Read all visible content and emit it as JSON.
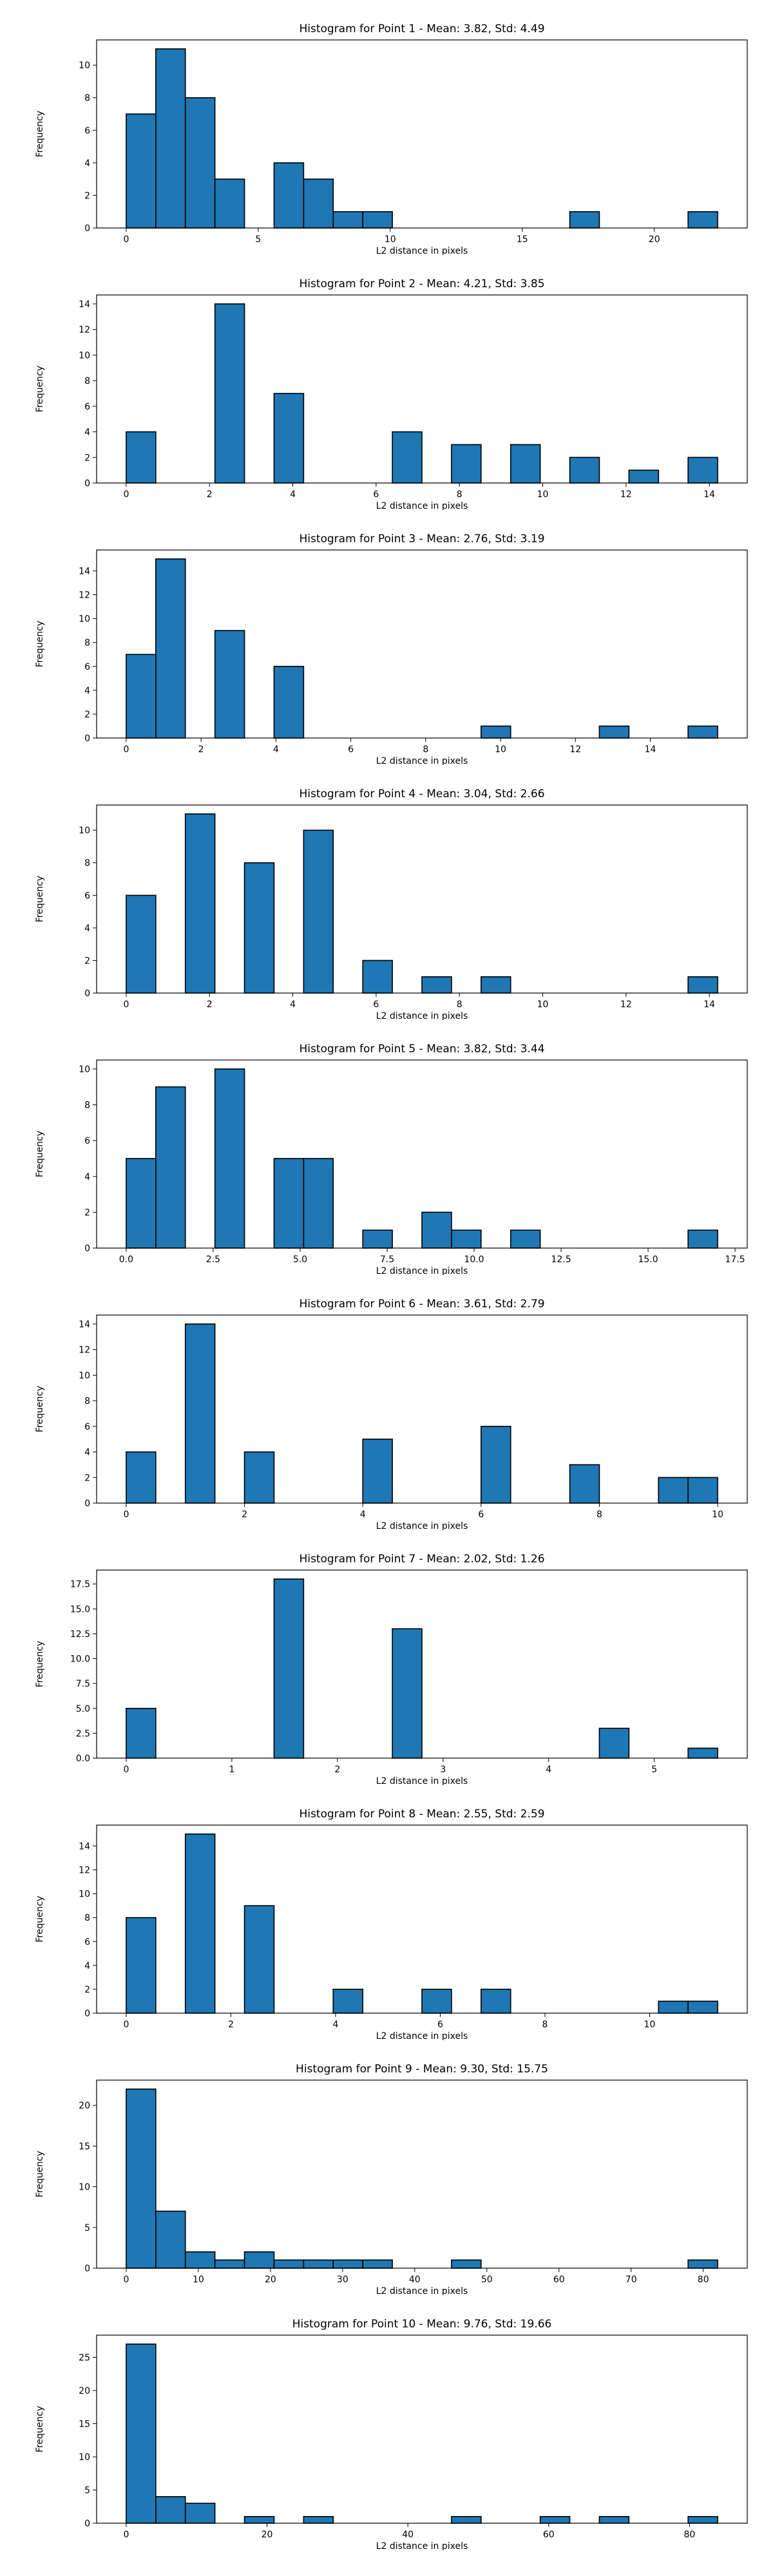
{
  "chart_data": [
    {
      "type": "bar",
      "title": "Histogram for Point 1 - Mean: 3.82, Std: 4.49",
      "xlabel": "L2 distance in pixels",
      "ylabel": "Frequency",
      "bar_color": "#1f77b4",
      "edge_color": "#000000",
      "bin_start": 0.0,
      "bin_width": 1.12,
      "counts": [
        7,
        11,
        8,
        3,
        0,
        4,
        3,
        1,
        1,
        0,
        0,
        0,
        0,
        0,
        0,
        1,
        0,
        0,
        0,
        1
      ],
      "xlim": [
        -1.12,
        23.52
      ],
      "ylim": [
        0,
        11.55
      ],
      "xticks": [
        0,
        5,
        10,
        15,
        20
      ],
      "xtick_labels": [
        "0",
        "5",
        "10",
        "15",
        "20"
      ],
      "yticks": [
        0,
        2,
        4,
        6,
        8,
        10
      ],
      "ytick_labels": [
        "0",
        "2",
        "4",
        "6",
        "8",
        "10"
      ]
    },
    {
      "type": "bar",
      "title": "Histogram for Point 2 - Mean: 4.21, Std: 3.85",
      "xlabel": "L2 distance in pixels",
      "ylabel": "Frequency",
      "bar_color": "#1f77b4",
      "edge_color": "#000000",
      "bin_start": 0.0,
      "bin_width": 0.71,
      "counts": [
        4,
        0,
        0,
        14,
        0,
        7,
        0,
        0,
        0,
        4,
        0,
        3,
        0,
        3,
        0,
        2,
        0,
        1,
        0,
        2
      ],
      "xlim": [
        -0.71,
        14.91
      ],
      "ylim": [
        0,
        14.7
      ],
      "xticks": [
        0,
        2,
        4,
        6,
        8,
        10,
        12,
        14
      ],
      "xtick_labels": [
        "0",
        "2",
        "4",
        "6",
        "8",
        "10",
        "12",
        "14"
      ],
      "yticks": [
        0,
        2,
        4,
        6,
        8,
        10,
        12,
        14
      ],
      "ytick_labels": [
        "0",
        "2",
        "4",
        "6",
        "8",
        "10",
        "12",
        "14"
      ]
    },
    {
      "type": "bar",
      "title": "Histogram for Point 3 - Mean: 2.76, Std: 3.19",
      "xlabel": "L2 distance in pixels",
      "ylabel": "Frequency",
      "bar_color": "#1f77b4",
      "edge_color": "#000000",
      "bin_start": 0.0,
      "bin_width": 0.79,
      "counts": [
        7,
        15,
        0,
        9,
        0,
        6,
        0,
        0,
        0,
        0,
        0,
        0,
        1,
        0,
        0,
        0,
        1,
        0,
        0,
        1
      ],
      "xlim": [
        -0.79,
        16.59
      ],
      "ylim": [
        0,
        15.75
      ],
      "xticks": [
        0,
        2,
        4,
        6,
        8,
        10,
        12,
        14
      ],
      "xtick_labels": [
        "0",
        "2",
        "4",
        "6",
        "8",
        "10",
        "12",
        "14"
      ],
      "yticks": [
        0,
        2,
        4,
        6,
        8,
        10,
        12,
        14
      ],
      "ytick_labels": [
        "0",
        "2",
        "4",
        "6",
        "8",
        "10",
        "12",
        "14"
      ]
    },
    {
      "type": "bar",
      "title": "Histogram for Point 4 - Mean: 3.04, Std: 2.66",
      "xlabel": "L2 distance in pixels",
      "ylabel": "Frequency",
      "bar_color": "#1f77b4",
      "edge_color": "#000000",
      "bin_start": 0.0,
      "bin_width": 0.71,
      "counts": [
        6,
        0,
        11,
        0,
        8,
        0,
        10,
        0,
        2,
        0,
        1,
        0,
        1,
        0,
        0,
        0,
        0,
        0,
        0,
        1
      ],
      "xlim": [
        -0.71,
        14.91
      ],
      "ylim": [
        0,
        11.55
      ],
      "xticks": [
        0,
        2,
        4,
        6,
        8,
        10,
        12,
        14
      ],
      "xtick_labels": [
        "0",
        "2",
        "4",
        "6",
        "8",
        "10",
        "12",
        "14"
      ],
      "yticks": [
        0,
        2,
        4,
        6,
        8,
        10
      ],
      "ytick_labels": [
        "0",
        "2",
        "4",
        "6",
        "8",
        "10"
      ]
    },
    {
      "type": "bar",
      "title": "Histogram for Point 5 - Mean: 3.82, Std: 3.44",
      "xlabel": "L2 distance in pixels",
      "ylabel": "Frequency",
      "bar_color": "#1f77b4",
      "edge_color": "#000000",
      "bin_start": 0.0,
      "bin_width": 0.85,
      "counts": [
        5,
        9,
        0,
        10,
        0,
        5,
        5,
        0,
        1,
        0,
        2,
        1,
        0,
        1,
        0,
        0,
        0,
        0,
        0,
        1
      ],
      "xlim": [
        -0.85,
        17.85
      ],
      "ylim": [
        0,
        10.5
      ],
      "xticks": [
        0,
        2.5,
        5,
        7.5,
        10,
        12.5,
        15,
        17.5
      ],
      "xtick_labels": [
        "0.0",
        "2.5",
        "5.0",
        "7.5",
        "10.0",
        "12.5",
        "15.0",
        "17.5"
      ],
      "yticks": [
        0,
        2,
        4,
        6,
        8,
        10
      ],
      "ytick_labels": [
        "0",
        "2",
        "4",
        "6",
        "8",
        "10"
      ]
    },
    {
      "type": "bar",
      "title": "Histogram for Point 6 - Mean: 3.61, Std: 2.79",
      "xlabel": "L2 distance in pixels",
      "ylabel": "Frequency",
      "bar_color": "#1f77b4",
      "edge_color": "#000000",
      "bin_start": 0.0,
      "bin_width": 0.5,
      "counts": [
        4,
        0,
        14,
        0,
        4,
        0,
        0,
        0,
        5,
        0,
        0,
        0,
        6,
        0,
        0,
        3,
        0,
        0,
        2,
        2
      ],
      "xlim": [
        -0.5,
        10.5
      ],
      "ylim": [
        0,
        14.7
      ],
      "xticks": [
        0,
        2,
        4,
        6,
        8,
        10
      ],
      "xtick_labels": [
        "0",
        "2",
        "4",
        "6",
        "8",
        "10"
      ],
      "yticks": [
        0,
        2,
        4,
        6,
        8,
        10,
        12,
        14
      ],
      "ytick_labels": [
        "0",
        "2",
        "4",
        "6",
        "8",
        "10",
        "12",
        "14"
      ]
    },
    {
      "type": "bar",
      "title": "Histogram for Point 7 - Mean: 2.02, Std: 1.26",
      "xlabel": "L2 distance in pixels",
      "ylabel": "Frequency",
      "bar_color": "#1f77b4",
      "edge_color": "#000000",
      "bin_start": 0.0,
      "bin_width": 0.28,
      "counts": [
        5,
        0,
        0,
        0,
        0,
        18,
        0,
        0,
        0,
        13,
        0,
        0,
        0,
        0,
        0,
        0,
        3,
        0,
        0,
        1
      ],
      "xlim": [
        -0.28,
        5.88
      ],
      "ylim": [
        0,
        18.9
      ],
      "xticks": [
        0,
        1,
        2,
        3,
        4,
        5
      ],
      "xtick_labels": [
        "0",
        "1",
        "2",
        "3",
        "4",
        "5"
      ],
      "yticks": [
        0,
        2.5,
        5,
        7.5,
        10,
        12.5,
        15,
        17.5
      ],
      "ytick_labels": [
        "0.0",
        "2.5",
        "5.0",
        "7.5",
        "10.0",
        "12.5",
        "15.0",
        "17.5"
      ]
    },
    {
      "type": "bar",
      "title": "Histogram for Point 8 - Mean: 2.55, Std: 2.59",
      "xlabel": "L2 distance in pixels",
      "ylabel": "Frequency",
      "bar_color": "#1f77b4",
      "edge_color": "#000000",
      "bin_start": 0.0,
      "bin_width": 0.565,
      "counts": [
        8,
        0,
        15,
        0,
        9,
        0,
        0,
        2,
        0,
        0,
        2,
        0,
        2,
        0,
        0,
        0,
        0,
        0,
        1,
        1
      ],
      "xlim": [
        -0.565,
        11.865
      ],
      "ylim": [
        0,
        15.75
      ],
      "xticks": [
        0,
        2,
        4,
        6,
        8,
        10
      ],
      "xtick_labels": [
        "0",
        "2",
        "4",
        "6",
        "8",
        "10"
      ],
      "yticks": [
        0,
        2,
        4,
        6,
        8,
        10,
        12,
        14
      ],
      "ytick_labels": [
        "0",
        "2",
        "4",
        "6",
        "8",
        "10",
        "12",
        "14"
      ]
    },
    {
      "type": "bar",
      "title": "Histogram for Point 9 - Mean: 9.30, Std: 15.75",
      "xlabel": "L2 distance in pixels",
      "ylabel": "Frequency",
      "bar_color": "#1f77b4",
      "edge_color": "#000000",
      "bin_start": 0.0,
      "bin_width": 4.1,
      "counts": [
        22,
        7,
        2,
        1,
        2,
        1,
        1,
        1,
        1,
        0,
        0,
        1,
        0,
        0,
        0,
        0,
        0,
        0,
        0,
        1
      ],
      "xlim": [
        -4.1,
        86.1
      ],
      "ylim": [
        0,
        23.1
      ],
      "xticks": [
        0,
        10,
        20,
        30,
        40,
        50,
        60,
        70,
        80
      ],
      "xtick_labels": [
        "0",
        "10",
        "20",
        "30",
        "40",
        "50",
        "60",
        "70",
        "80"
      ],
      "yticks": [
        0,
        5,
        10,
        15,
        20
      ],
      "ytick_labels": [
        "0",
        "5",
        "10",
        "15",
        "20"
      ]
    },
    {
      "type": "bar",
      "title": "Histogram for Point 10 - Mean: 9.76, Std: 19.66",
      "xlabel": "L2 distance in pixels",
      "ylabel": "Frequency",
      "bar_color": "#1f77b4",
      "edge_color": "#000000",
      "bin_start": 0.0,
      "bin_width": 4.2,
      "counts": [
        27,
        4,
        3,
        0,
        1,
        0,
        1,
        0,
        0,
        0,
        0,
        1,
        0,
        0,
        1,
        0,
        1,
        0,
        0,
        1
      ],
      "xlim": [
        -4.2,
        88.2
      ],
      "ylim": [
        0,
        28.35
      ],
      "xticks": [
        0,
        20,
        40,
        60,
        80
      ],
      "xtick_labels": [
        "0",
        "20",
        "40",
        "60",
        "80"
      ],
      "yticks": [
        0,
        5,
        10,
        15,
        20,
        25
      ],
      "ytick_labels": [
        "0",
        "5",
        "10",
        "15",
        "20",
        "25"
      ]
    }
  ]
}
